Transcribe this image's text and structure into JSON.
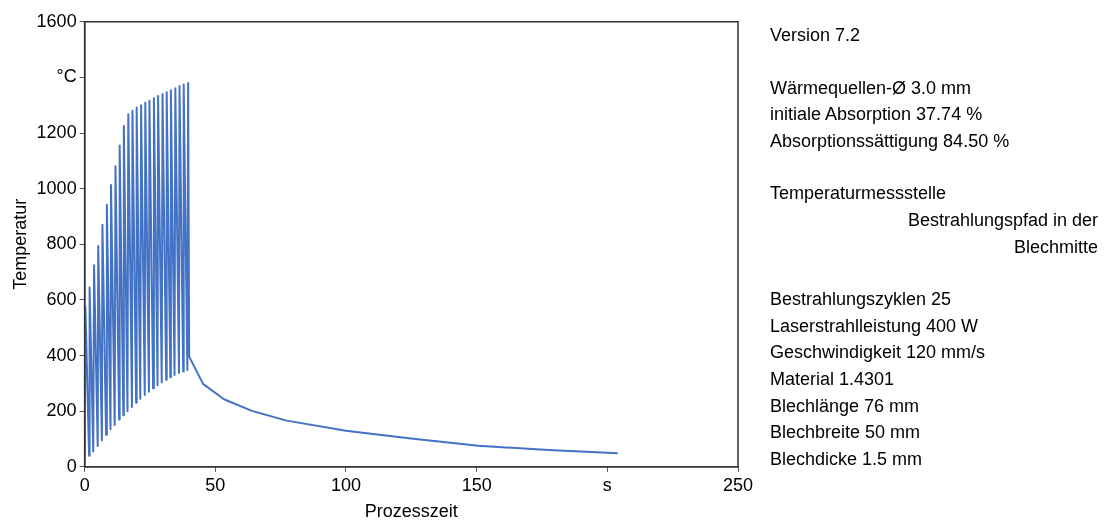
{
  "chart_data": {
    "type": "line",
    "xlabel": "Prozesszeit",
    "ylabel": "Temperatur",
    "grid": false,
    "legend": false,
    "marker": "none",
    "line_style": "solid",
    "xlim": [
      0,
      250
    ],
    "xticks": [
      0,
      50,
      100,
      150,
      {
        "value": 200,
        "label": "s"
      },
      250
    ],
    "ylim": [
      0,
      1600
    ],
    "yticks": [
      0,
      200,
      400,
      600,
      800,
      1000,
      1200,
      {
        "value": 1400,
        "label": "°C"
      },
      1600
    ],
    "series": [
      {
        "color": "#4472c4",
        "x": [
          0,
          0.3,
          1.7,
          1.9,
          3.3,
          3.6,
          5.0,
          5.2,
          6.6,
          6.8,
          8.2,
          8.5,
          9.9,
          10.1,
          11.5,
          11.8,
          13.2,
          13.4,
          14.8,
          15.0,
          16.4,
          16.7,
          18.1,
          18.3,
          19.7,
          19.9,
          21.3,
          21.6,
          23.0,
          23.2,
          24.6,
          24.8,
          26.2,
          26.5,
          27.9,
          28.1,
          29.5,
          29.8,
          31.2,
          31.4,
          32.8,
          33.0,
          34.4,
          34.7,
          36.1,
          36.3,
          37.7,
          37.9,
          39.3,
          39.6,
          40.0,
          45.3,
          53.3,
          64,
          77.3,
          100,
          124,
          150.6,
          177.5,
          204
        ],
        "values": [
          20,
          575,
          40,
          645,
          55,
          725,
          75,
          794,
          95,
          870,
          115,
          942,
          135,
          1013,
          150,
          1081,
          170,
          1155,
          185,
          1225,
          200,
          1268,
          215,
          1280,
          230,
          1292,
          245,
          1300,
          258,
          1309,
          270,
          1316,
          282,
          1325,
          293,
          1333,
          303,
          1340,
          313,
          1347,
          322,
          1354,
          330,
          1361,
          337,
          1369,
          343,
          1375,
          348,
          1380,
          396,
          298,
          243,
          201,
          166,
          130,
          103,
          76,
          60,
          49
        ]
      }
    ],
    "annotations": [
      "Version 7.2",
      "Wärmequellen-Ø 3.0 mm",
      "initiale Absorption 37.74 %",
      "Absorptionssättigung 84.50 %",
      "Temperaturmessstelle",
      "Bestrahlungspfad in der Blechmitte",
      "Bestrahlungszyklen 25",
      "Laserstrahlleistung 400 W",
      "Geschwindigkeit 120 mm/s",
      "Material 1.4301",
      "Blechlänge 76 mm",
      "Blechbreite 50 mm",
      "Blechdicke 1.5 mm"
    ]
  }
}
